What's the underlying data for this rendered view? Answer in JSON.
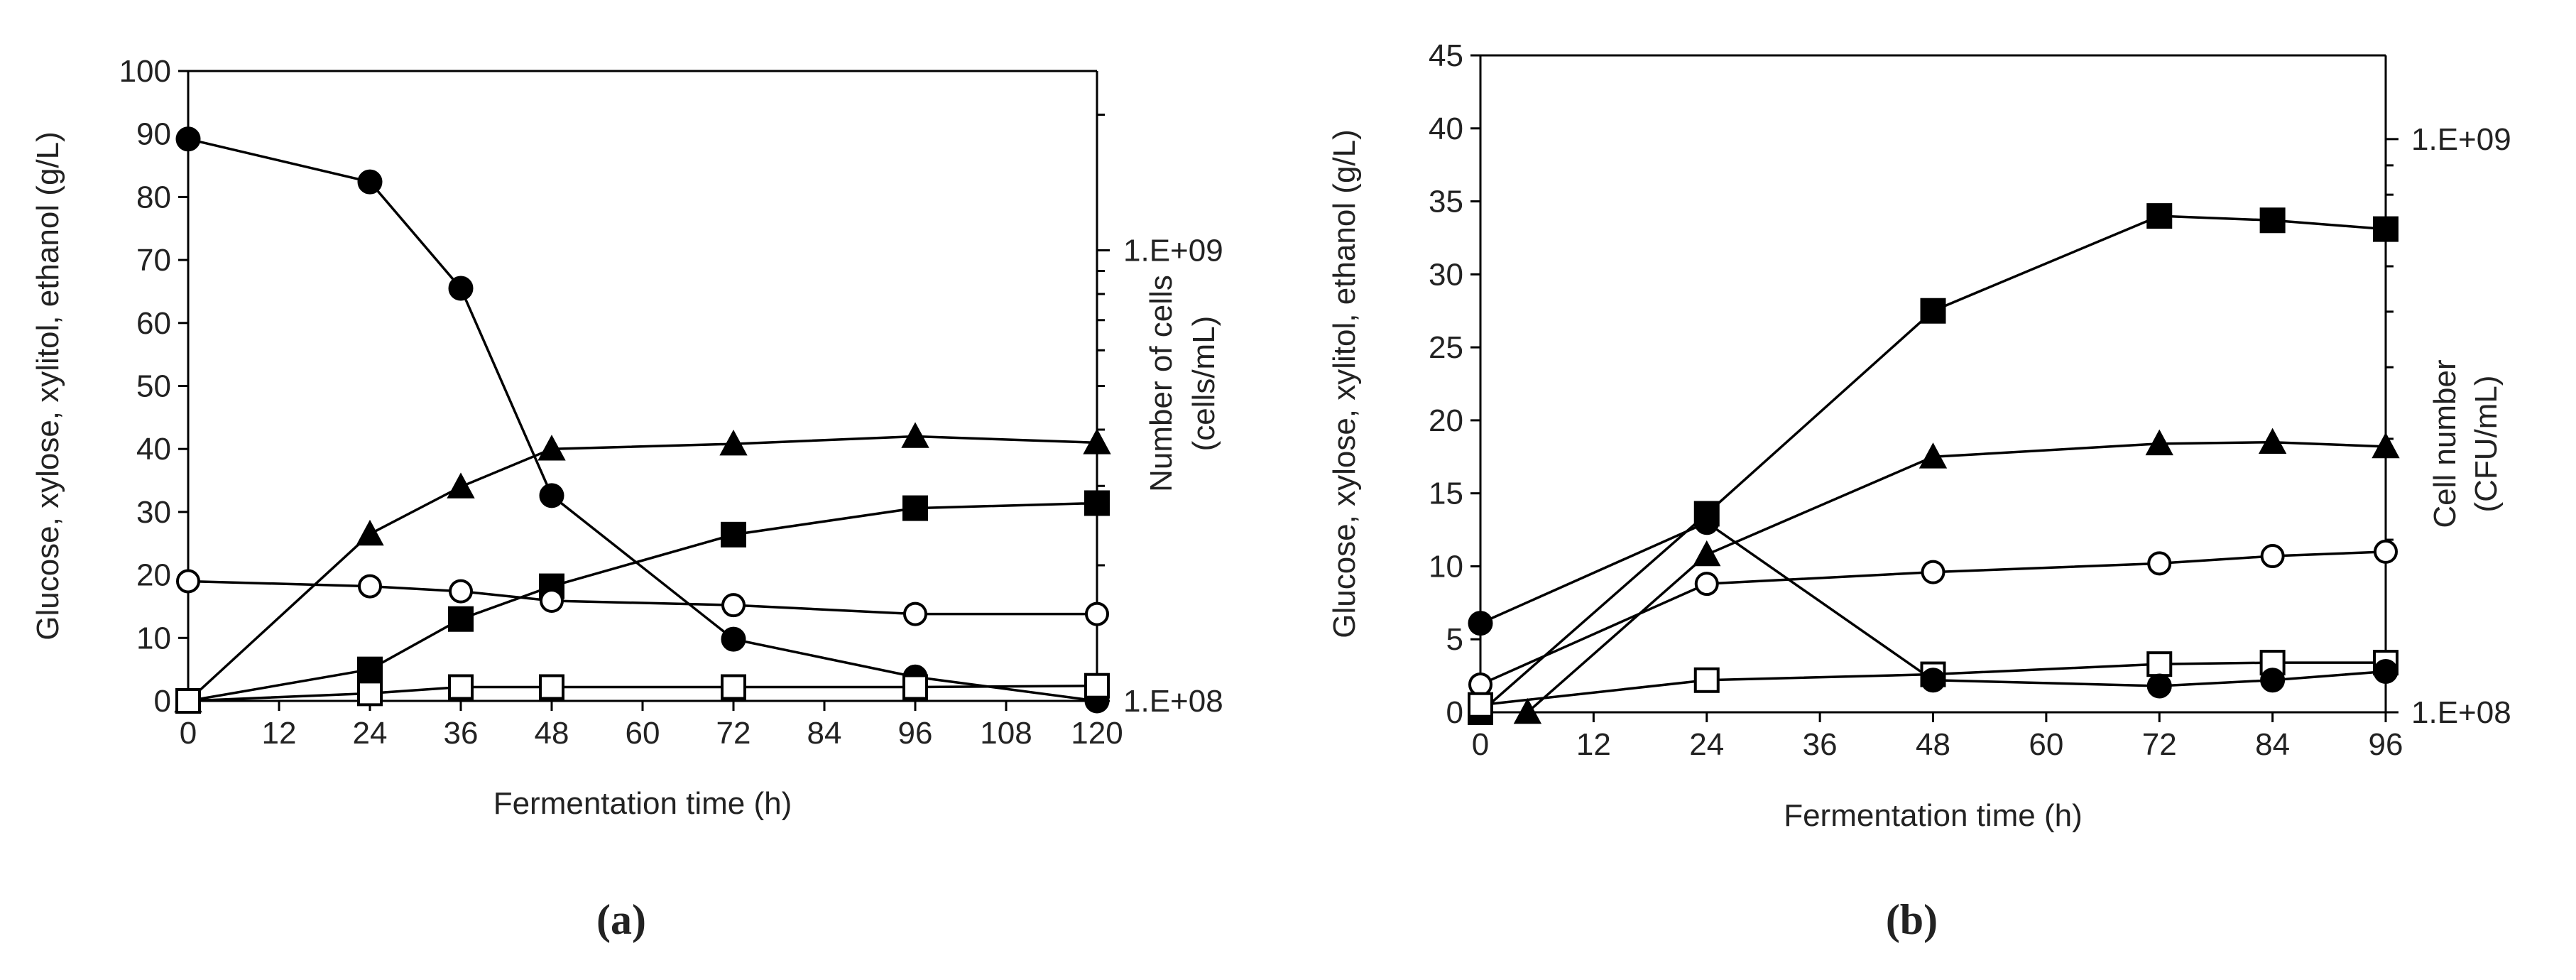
{
  "chart_data": [
    {
      "type": "line",
      "panel_label": "(a)",
      "xlabel": "Fermentation time (h)",
      "ylabel": "Glucose, xylose, xylitol, ethanol (g/L)",
      "y2label_line1": "Number of cells",
      "y2label_line2": "(cells/mL)",
      "xlim": [
        0,
        120
      ],
      "ylim": [
        0,
        100
      ],
      "xticks": [
        "0",
        "12",
        "24",
        "36",
        "48",
        "60",
        "72",
        "84",
        "96",
        "108",
        "120"
      ],
      "yticks": [
        "0",
        "10",
        "20",
        "30",
        "40",
        "50",
        "60",
        "70",
        "80",
        "90",
        "100"
      ],
      "y2_scale": "log",
      "y2lim": [
        100000000.0,
        2500000000.0
      ],
      "y2ticks": [
        "1.E+08",
        "1.E+09"
      ],
      "grid": false,
      "series": [
        {
          "name": "filled circle",
          "marker": "filled-circle",
          "x": [
            0,
            24,
            36,
            48,
            72,
            96,
            120
          ],
          "values": [
            89.2,
            82.4,
            65.5,
            32.6,
            9.8,
            3.8,
            0
          ]
        },
        {
          "name": "filled triangle",
          "marker": "filled-triangle",
          "x": [
            0,
            24,
            36,
            48,
            72,
            96,
            120
          ],
          "values": [
            0,
            26.5,
            34,
            40,
            40.8,
            42,
            41
          ]
        },
        {
          "name": "filled square",
          "marker": "filled-square",
          "x": [
            0,
            24,
            36,
            48,
            72,
            96,
            120
          ],
          "values": [
            0,
            5,
            13,
            18.2,
            26.4,
            30.6,
            31.4
          ]
        },
        {
          "name": "open circle",
          "marker": "open-circle",
          "x": [
            0,
            24,
            36,
            48,
            72,
            96,
            120
          ],
          "values": [
            19,
            18.2,
            17.4,
            15.9,
            15.2,
            13.8,
            13.8
          ]
        },
        {
          "name": "open square",
          "marker": "open-square",
          "x": [
            0,
            24,
            36,
            48,
            72,
            96,
            120
          ],
          "values": [
            0,
            1.2,
            2.2,
            2.2,
            2.2,
            2.2,
            2.4
          ]
        }
      ]
    },
    {
      "type": "line",
      "panel_label": "(b)",
      "xlabel": "Fermentation time (h)",
      "ylabel": "Glucose, xylose, xylitol, ethanol (g/L)",
      "y2label_line1": "Cell number",
      "y2label_line2": "(CFU/mL)",
      "xlim": [
        0,
        96
      ],
      "ylim": [
        0,
        45
      ],
      "xticks": [
        "0",
        "12",
        "24",
        "36",
        "48",
        "60",
        "72",
        "84",
        "96"
      ],
      "yticks": [
        "0",
        "5",
        "10",
        "15",
        "20",
        "25",
        "30",
        "35",
        "40",
        "45"
      ],
      "y2_scale": "log",
      "y2lim": [
        100000000.0,
        1400000000.0
      ],
      "y2ticks": [
        "1.E+08",
        "1.E+09"
      ],
      "grid": false,
      "series": [
        {
          "name": "filled square",
          "marker": "filled-square",
          "x": [
            0,
            24,
            48,
            72,
            84,
            96
          ],
          "values": [
            0,
            13.6,
            27.5,
            34,
            33.7,
            33.1
          ]
        },
        {
          "name": "filled triangle",
          "marker": "filled-triangle",
          "x": [
            5,
            24,
            48,
            72,
            84,
            96
          ],
          "values": [
            0,
            10.8,
            17.5,
            18.4,
            18.5,
            18.2
          ]
        },
        {
          "name": "open circle",
          "marker": "open-circle",
          "x": [
            0,
            24,
            48,
            72,
            84,
            96
          ],
          "values": [
            1.9,
            8.8,
            9.6,
            10.2,
            10.7,
            11
          ]
        },
        {
          "name": "open square",
          "marker": "open-square",
          "x": [
            0,
            24,
            48,
            72,
            84,
            96
          ],
          "values": [
            0.5,
            2.2,
            2.6,
            3.3,
            3.4,
            3.4
          ]
        },
        {
          "name": "filled circle",
          "marker": "filled-circle",
          "x": [
            0,
            24,
            48,
            72,
            84,
            96
          ],
          "values": [
            6.1,
            13,
            2.2,
            1.8,
            2.2,
            2.8
          ]
        }
      ]
    }
  ]
}
